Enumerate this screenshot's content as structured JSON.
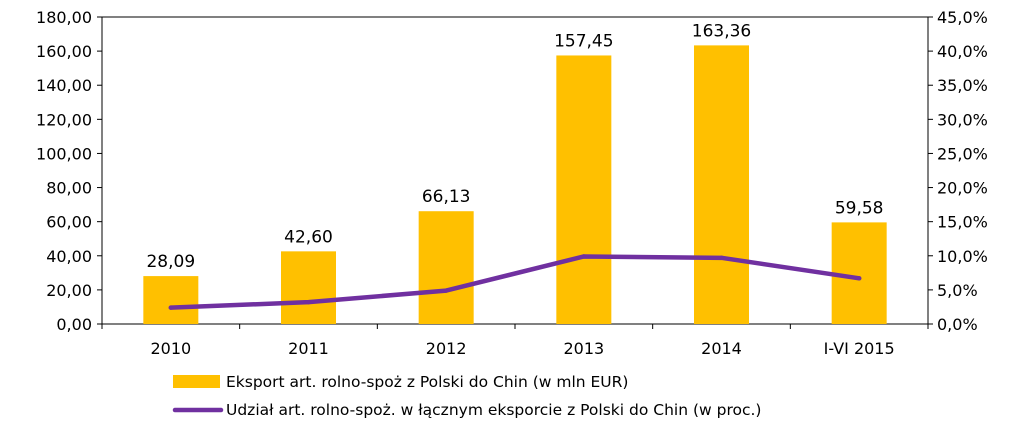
{
  "chart_data": {
    "type": "bar",
    "categories": [
      "2010",
      "2011",
      "2012",
      "2013",
      "2014",
      "I-VI 2015"
    ],
    "series": [
      {
        "name": "Eksport art. rolno-spoż z Polski do Chin (w mln EUR)",
        "type": "bar",
        "axis": "left",
        "values": [
          28.09,
          42.6,
          66.13,
          157.45,
          163.36,
          59.58
        ],
        "data_labels": [
          "28,09",
          "42,60",
          "66,13",
          "157,45",
          "163,36",
          "59,58"
        ],
        "color": "#FFC000"
      },
      {
        "name": "Udział art. rolno-spoż. w łącznym eksporcie z Polski do Chin (w proc.)",
        "type": "line",
        "axis": "right",
        "values": [
          2.4,
          3.2,
          4.9,
          9.9,
          9.7,
          6.7
        ],
        "color": "#7030A0"
      }
    ],
    "y_left": {
      "ylim": [
        0,
        180
      ],
      "ticks": [
        "0,00",
        "20,00",
        "40,00",
        "60,00",
        "80,00",
        "100,00",
        "120,00",
        "140,00",
        "160,00",
        "180,00"
      ]
    },
    "y_right": {
      "ylim": [
        0,
        45
      ],
      "ticks": [
        "0,0%",
        "5,0%",
        "10,0%",
        "15,0%",
        "20,0%",
        "25,0%",
        "30,0%",
        "35,0%",
        "40,0%",
        "45,0%"
      ]
    },
    "title": "",
    "xlabel": "",
    "ylabel": "",
    "grid": false,
    "legend_position": "bottom"
  }
}
